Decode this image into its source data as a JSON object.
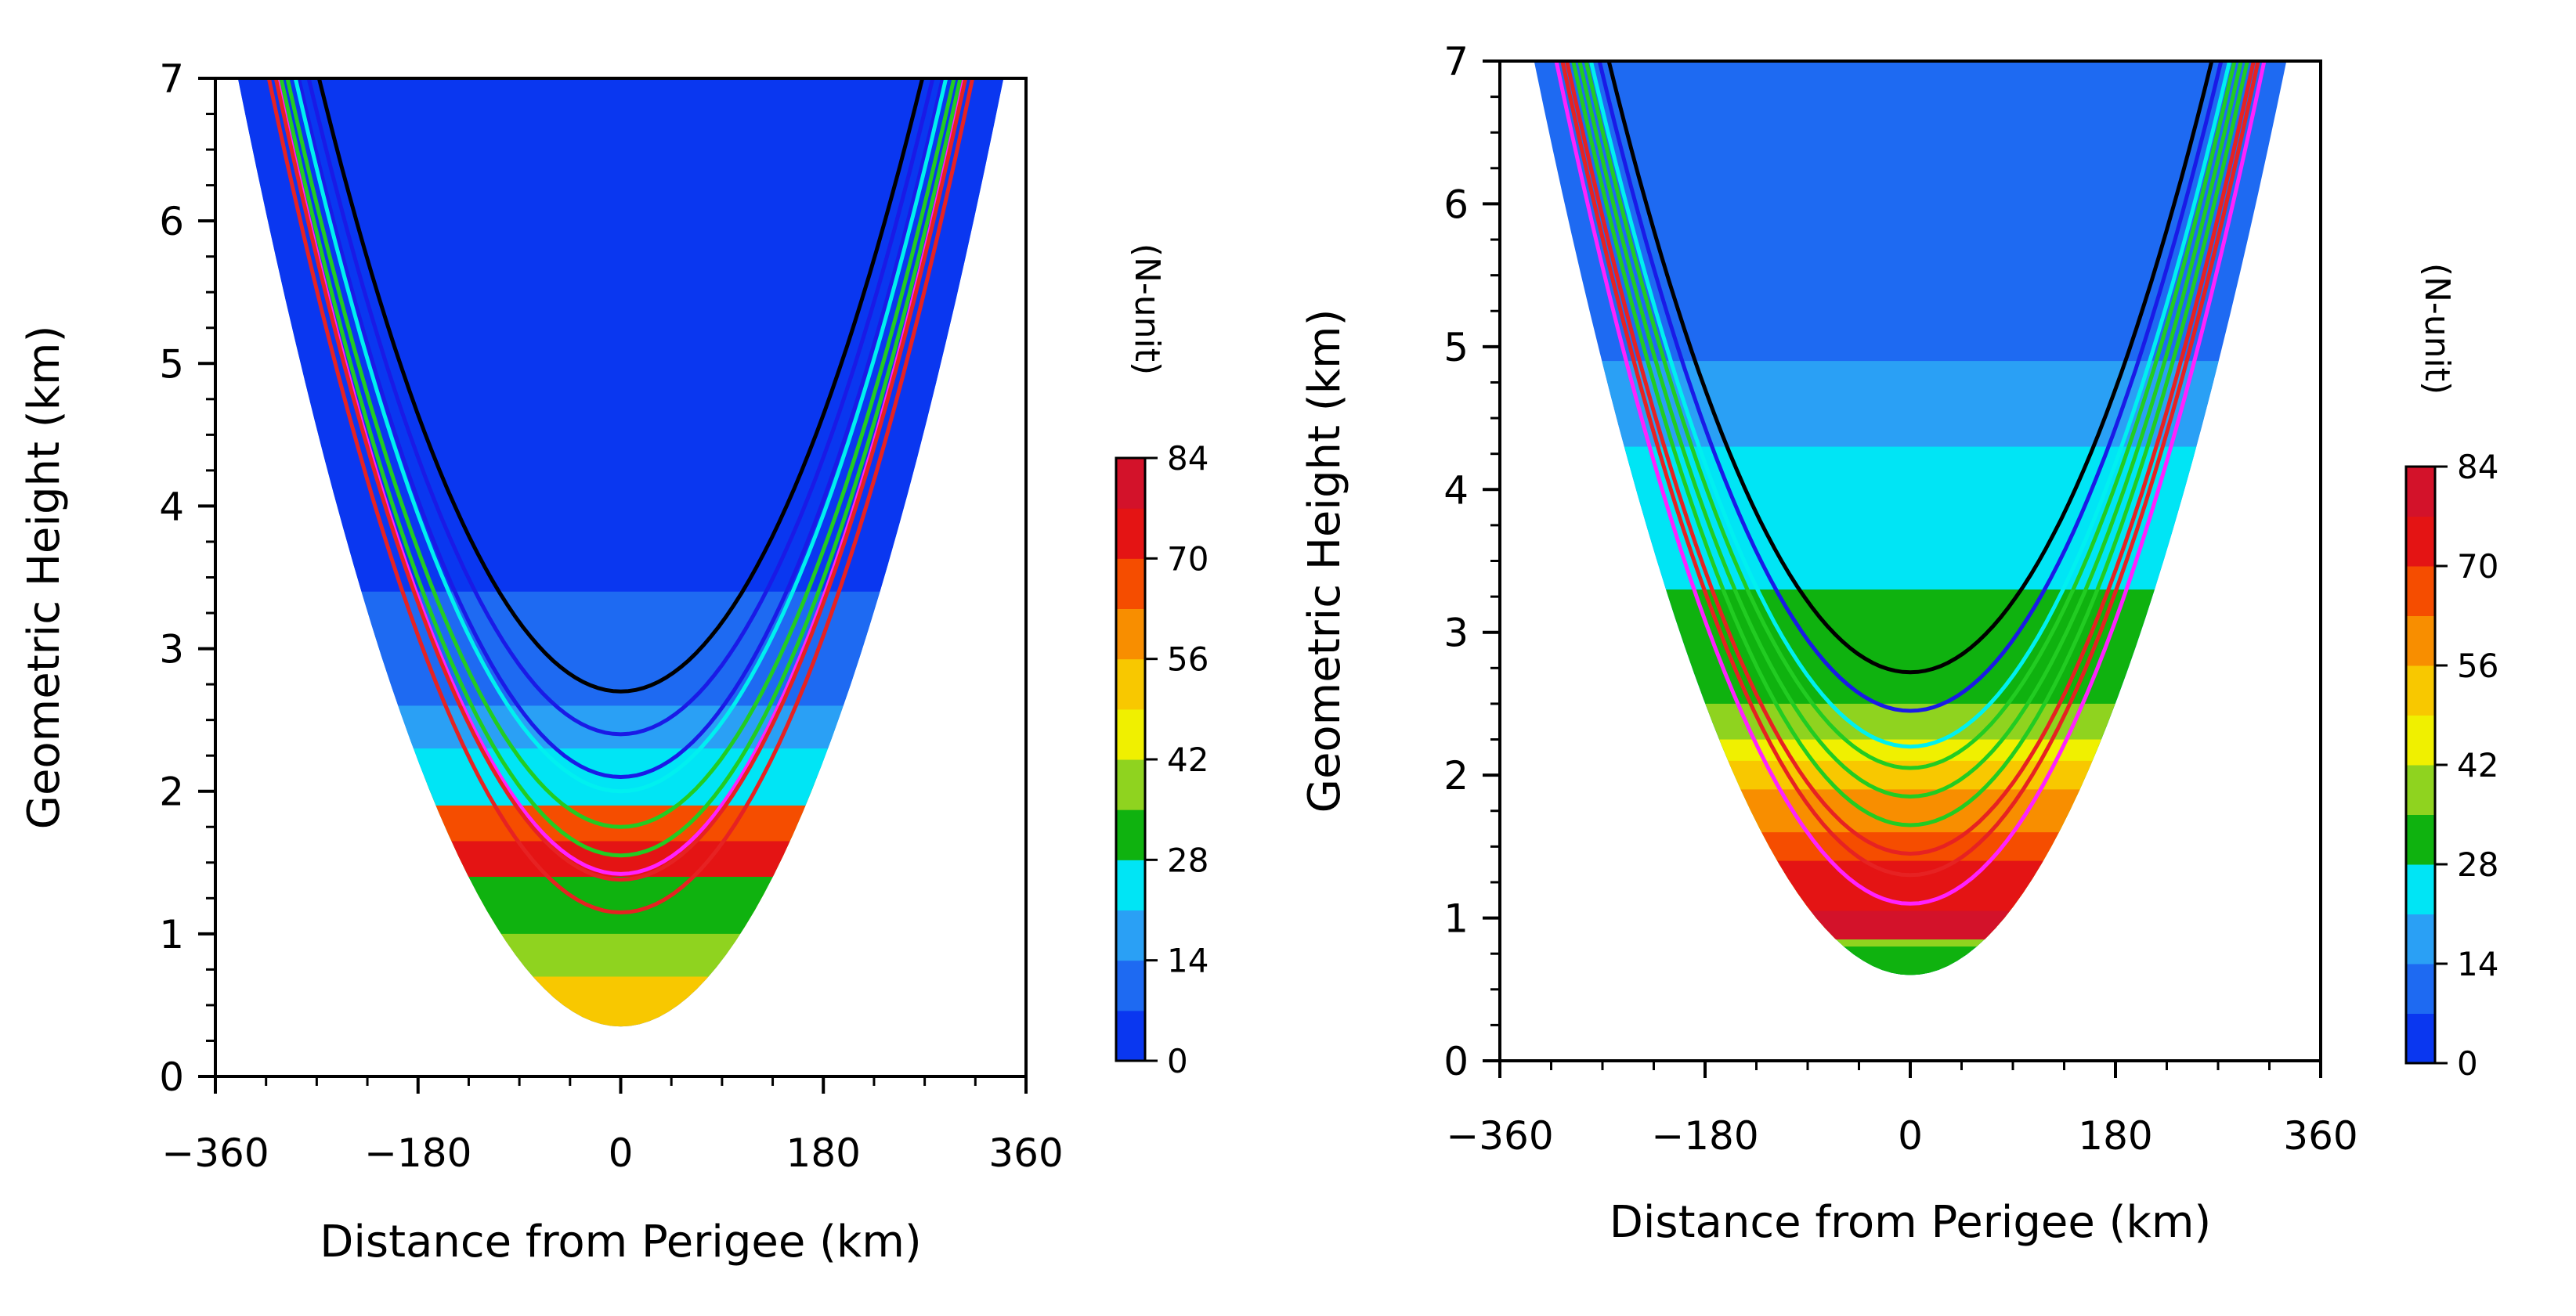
{
  "chart_data": [
    {
      "type": "heatmap",
      "panel": "left",
      "title": "",
      "xlabel": "Distance from Perigee (km)",
      "ylabel": "Geometric Height (km)",
      "xlim": [
        -360,
        360
      ],
      "ylim": [
        0,
        7
      ],
      "xticks": [
        -360,
        -180,
        0,
        180,
        360
      ],
      "xtick_labels": [
        "−360",
        "−180",
        "0",
        "180",
        "360"
      ],
      "yticks": [
        0,
        1,
        2,
        3,
        4,
        5,
        6,
        7
      ],
      "ytick_labels": [
        "0",
        "1",
        "2",
        "3",
        "4",
        "5",
        "6",
        "7"
      ],
      "colorbar": {
        "label": "(N-unit)",
        "min": 0,
        "max": 84,
        "ticks": [
          0,
          14,
          28,
          42,
          56,
          70,
          84
        ],
        "tick_labels": [
          "0",
          "14",
          "28",
          "42",
          "56",
          "70",
          "84"
        ],
        "colors": [
          "#0a37f0",
          "#1e6af2",
          "#2aa0f5",
          "#00e5f5",
          "#0fb20f",
          "#8fd31f",
          "#f0f000",
          "#f8c800",
          "#f88e00",
          "#f54d00",
          "#e41414",
          "#d3122a"
        ]
      },
      "domain_bottom_height_km": 0.35,
      "domain_top_halfwidth_km": 340,
      "field_layers": [
        {
          "level": 7,
          "min_height_km": 0.35,
          "max_height_km": 1.3
        },
        {
          "level": 5,
          "min_height_km": 0.7,
          "max_height_km": 1.8
        },
        {
          "level": 4,
          "min_height_km": 1.0,
          "max_height_km": 2.05
        },
        {
          "level": 8,
          "min_height_km": 1.45,
          "max_height_km": 2.1
        },
        {
          "level": 9,
          "min_height_km": 1.5,
          "max_height_km": 1.95
        },
        {
          "level": 10,
          "min_height_km": 1.4,
          "max_height_km": 1.65
        },
        {
          "level": 3,
          "min_height_km": 1.9,
          "max_height_km": 2.45
        },
        {
          "level": 2,
          "min_height_km": 2.3,
          "max_height_km": 3.1
        },
        {
          "level": 1,
          "min_height_km": 2.6,
          "max_height_km": 3.6
        },
        {
          "level": 0,
          "min_height_km": 3.4,
          "max_height_km": 7.0
        }
      ],
      "ray_paths": [
        {
          "color": "#000000",
          "min_height_km": 2.7
        },
        {
          "color": "#1a1ae6",
          "min_height_km": 2.4
        },
        {
          "color": "#1a1ae6",
          "min_height_km": 2.1
        },
        {
          "color": "#00f0f0",
          "min_height_km": 2.0
        },
        {
          "color": "#22cc22",
          "min_height_km": 1.75
        },
        {
          "color": "#22cc22",
          "min_height_km": 1.55
        },
        {
          "color": "#ff22ff",
          "min_height_km": 1.42
        },
        {
          "color": "#e62222",
          "min_height_km": 1.38
        },
        {
          "color": "#e62222",
          "min_height_km": 1.15
        }
      ]
    },
    {
      "type": "heatmap",
      "panel": "right",
      "title": "",
      "xlabel": "Distance from Perigee (km)",
      "ylabel": "Geometric Height (km)",
      "xlim": [
        -360,
        360
      ],
      "ylim": [
        0,
        7
      ],
      "xticks": [
        -360,
        -180,
        0,
        180,
        360
      ],
      "xtick_labels": [
        "−360",
        "−180",
        "0",
        "180",
        "360"
      ],
      "yticks": [
        0,
        1,
        2,
        3,
        4,
        5,
        6,
        7
      ],
      "ytick_labels": [
        "0",
        "1",
        "2",
        "3",
        "4",
        "5",
        "6",
        "7"
      ],
      "colorbar": {
        "label": "(N-unit)",
        "min": 0,
        "max": 84,
        "ticks": [
          0,
          14,
          28,
          42,
          56,
          70,
          84
        ],
        "tick_labels": [
          "0",
          "14",
          "28",
          "42",
          "56",
          "70",
          "84"
        ],
        "colors": [
          "#0a37f0",
          "#1e6af2",
          "#2aa0f5",
          "#00e5f5",
          "#0fb20f",
          "#8fd31f",
          "#f0f000",
          "#f8c800",
          "#f88e00",
          "#f54d00",
          "#e41414",
          "#d3122a"
        ]
      },
      "domain_bottom_height_km": 0.6,
      "domain_top_halfwidth_km": 330,
      "field_layers": [
        {
          "level": 2,
          "min_height_km": 3.6,
          "max_height_km": 4.9
        },
        {
          "level": 3,
          "min_height_km": 0.6,
          "max_height_km": 4.3
        },
        {
          "level": 4,
          "min_height_km": 0.6,
          "max_height_km": 3.3
        },
        {
          "level": 5,
          "min_height_km": 0.8,
          "max_height_km": 2.5
        },
        {
          "level": 6,
          "min_height_km": 0.85,
          "max_height_km": 2.25
        },
        {
          "level": 7,
          "min_height_km": 0.85,
          "max_height_km": 2.1
        },
        {
          "level": 8,
          "min_height_km": 0.85,
          "max_height_km": 1.9
        },
        {
          "level": 9,
          "min_height_km": 0.85,
          "max_height_km": 1.6
        },
        {
          "level": 10,
          "min_height_km": 0.85,
          "max_height_km": 1.4
        },
        {
          "level": 11,
          "min_height_km": 0.85,
          "max_height_km": 1.05
        },
        {
          "level": 4,
          "min_height_km": 0.6,
          "max_height_km": 0.78
        }
      ],
      "ray_paths": [
        {
          "color": "#000000",
          "min_height_km": 2.72
        },
        {
          "color": "#1a1ae6",
          "min_height_km": 2.45
        },
        {
          "color": "#00f0f0",
          "min_height_km": 2.2
        },
        {
          "color": "#22cc22",
          "min_height_km": 2.05
        },
        {
          "color": "#22cc22",
          "min_height_km": 1.85
        },
        {
          "color": "#22cc22",
          "min_height_km": 1.65
        },
        {
          "color": "#e62222",
          "min_height_km": 1.45
        },
        {
          "color": "#e62222",
          "min_height_km": 1.3
        },
        {
          "color": "#ff22ff",
          "min_height_km": 1.1
        }
      ]
    }
  ]
}
